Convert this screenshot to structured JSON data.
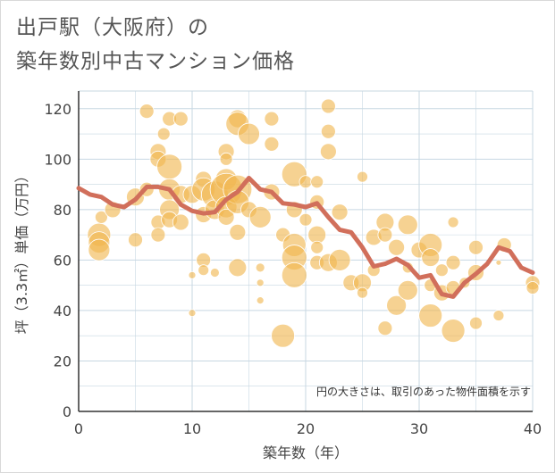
{
  "title_line1": "出戸駅（大阪府）の",
  "title_line2": "築年数別中古マンション価格",
  "chart_data": {
    "type": "scatter",
    "xlabel": "築年数（年）",
    "ylabel": "坪（3.3㎡）単価（万円）",
    "xlim": [
      0,
      40
    ],
    "ylim": [
      0,
      127
    ],
    "xticks": [
      "0",
      "10",
      "20",
      "30",
      "40"
    ],
    "yticks": [
      "0",
      "20",
      "40",
      "60",
      "80",
      "100",
      "120"
    ],
    "annotation": "円の大きさは、取引のあった物件面積を示す",
    "grid": true,
    "colors": {
      "bubble": "#f0b74f",
      "line": "#d16f5b",
      "grid": "#c7d7e2"
    },
    "bubbles": [
      [
        1.8,
        70,
        13
      ],
      [
        1.8,
        67,
        12
      ],
      [
        1.8,
        64,
        12
      ],
      [
        2,
        77,
        7
      ],
      [
        3,
        80,
        9
      ],
      [
        5,
        68,
        8
      ],
      [
        5,
        85,
        10
      ],
      [
        6,
        119,
        8
      ],
      [
        6,
        88,
        8
      ],
      [
        7,
        103,
        9
      ],
      [
        7,
        100,
        9
      ],
      [
        7,
        75,
        8
      ],
      [
        7,
        70,
        8
      ],
      [
        7.5,
        110,
        7
      ],
      [
        8,
        116,
        8
      ],
      [
        8,
        97,
        14
      ],
      [
        8,
        88,
        12
      ],
      [
        8,
        80,
        11
      ],
      [
        8,
        76,
        9
      ],
      [
        9,
        116,
        8
      ],
      [
        9,
        86,
        10
      ],
      [
        9,
        75,
        9
      ],
      [
        10,
        86,
        10
      ],
      [
        10,
        54,
        4
      ],
      [
        10,
        39,
        4
      ],
      [
        11,
        92,
        9
      ],
      [
        11,
        88,
        13
      ],
      [
        11,
        78,
        9
      ],
      [
        11,
        60,
        8
      ],
      [
        11,
        56,
        6
      ],
      [
        12,
        86,
        15
      ],
      [
        12,
        80,
        11
      ],
      [
        12,
        55,
        5
      ],
      [
        13,
        103,
        9
      ],
      [
        13,
        100,
        7
      ],
      [
        13,
        92,
        12
      ],
      [
        13,
        88,
        18
      ],
      [
        13,
        81,
        12
      ],
      [
        13,
        77,
        9
      ],
      [
        14,
        116,
        10
      ],
      [
        14,
        114,
        13
      ],
      [
        14,
        88,
        16
      ],
      [
        14,
        83,
        13
      ],
      [
        14,
        71,
        9
      ],
      [
        14,
        57,
        10
      ],
      [
        15,
        110,
        12
      ],
      [
        15,
        80,
        9
      ],
      [
        16,
        77,
        12
      ],
      [
        16,
        57,
        5
      ],
      [
        16,
        51,
        4
      ],
      [
        16,
        44,
        4
      ],
      [
        17,
        116,
        8
      ],
      [
        17,
        106,
        8
      ],
      [
        17,
        87,
        9
      ],
      [
        18,
        70,
        8
      ],
      [
        18,
        30,
        13
      ],
      [
        19,
        94,
        14
      ],
      [
        19,
        80,
        9
      ],
      [
        19,
        66,
        13
      ],
      [
        19,
        61,
        14
      ],
      [
        19,
        54,
        14
      ],
      [
        20,
        91,
        7
      ],
      [
        20,
        76,
        7
      ],
      [
        21,
        91,
        7
      ],
      [
        21,
        83,
        8
      ],
      [
        21,
        70,
        10
      ],
      [
        21,
        65,
        7
      ],
      [
        21,
        59,
        8
      ],
      [
        22,
        121,
        8
      ],
      [
        22,
        111,
        8
      ],
      [
        22,
        103,
        9
      ],
      [
        22,
        59,
        10
      ],
      [
        23,
        79,
        9
      ],
      [
        23,
        60,
        12
      ],
      [
        24,
        51,
        9
      ],
      [
        25,
        93,
        6
      ],
      [
        25,
        51,
        10
      ],
      [
        25,
        47,
        6
      ],
      [
        26,
        69,
        9
      ],
      [
        26,
        56,
        7
      ],
      [
        27,
        75,
        10
      ],
      [
        27,
        70,
        8
      ],
      [
        27,
        33,
        8
      ],
      [
        28,
        65,
        9
      ],
      [
        28,
        42,
        11
      ],
      [
        29,
        74,
        11
      ],
      [
        29,
        57,
        6
      ],
      [
        29,
        48,
        11
      ],
      [
        30,
        64,
        9
      ],
      [
        31,
        66,
        13
      ],
      [
        31,
        61,
        10
      ],
      [
        31,
        50,
        7
      ],
      [
        31,
        38,
        13
      ],
      [
        32,
        56,
        7
      ],
      [
        32,
        47,
        9
      ],
      [
        33,
        75,
        6
      ],
      [
        33,
        59,
        8
      ],
      [
        33,
        49,
        8
      ],
      [
        33,
        32,
        13
      ],
      [
        34,
        51,
        6
      ],
      [
        35,
        65,
        8
      ],
      [
        35,
        55,
        9
      ],
      [
        35,
        35,
        7
      ],
      [
        37,
        38,
        6
      ],
      [
        37,
        59,
        3
      ],
      [
        37.5,
        66,
        8
      ],
      [
        40,
        51,
        8
      ],
      [
        40,
        49,
        7
      ]
    ],
    "avg_line": [
      [
        0,
        88.5
      ],
      [
        1,
        86
      ],
      [
        2,
        85
      ],
      [
        3,
        82
      ],
      [
        4,
        81
      ],
      [
        5,
        84
      ],
      [
        6,
        89
      ],
      [
        7,
        89
      ],
      [
        8,
        88
      ],
      [
        9,
        82
      ],
      [
        10,
        79.5
      ],
      [
        11,
        78.5
      ],
      [
        12,
        79
      ],
      [
        13,
        84
      ],
      [
        14,
        87
      ],
      [
        15,
        92.5
      ],
      [
        16,
        88
      ],
      [
        17,
        87
      ],
      [
        18,
        82.5
      ],
      [
        19,
        82
      ],
      [
        20,
        81
      ],
      [
        21,
        82.5
      ],
      [
        22,
        77
      ],
      [
        23,
        72
      ],
      [
        24,
        71
      ],
      [
        25,
        65
      ],
      [
        26,
        57.5
      ],
      [
        27,
        58.5
      ],
      [
        28,
        60.5
      ],
      [
        29,
        58
      ],
      [
        30,
        53
      ],
      [
        31,
        54
      ],
      [
        32,
        46.5
      ],
      [
        33,
        45.5
      ],
      [
        34,
        51
      ],
      [
        35,
        54.5
      ],
      [
        36,
        58.5
      ],
      [
        37,
        65
      ],
      [
        38,
        63.5
      ],
      [
        39,
        57
      ],
      [
        40,
        55
      ]
    ]
  }
}
